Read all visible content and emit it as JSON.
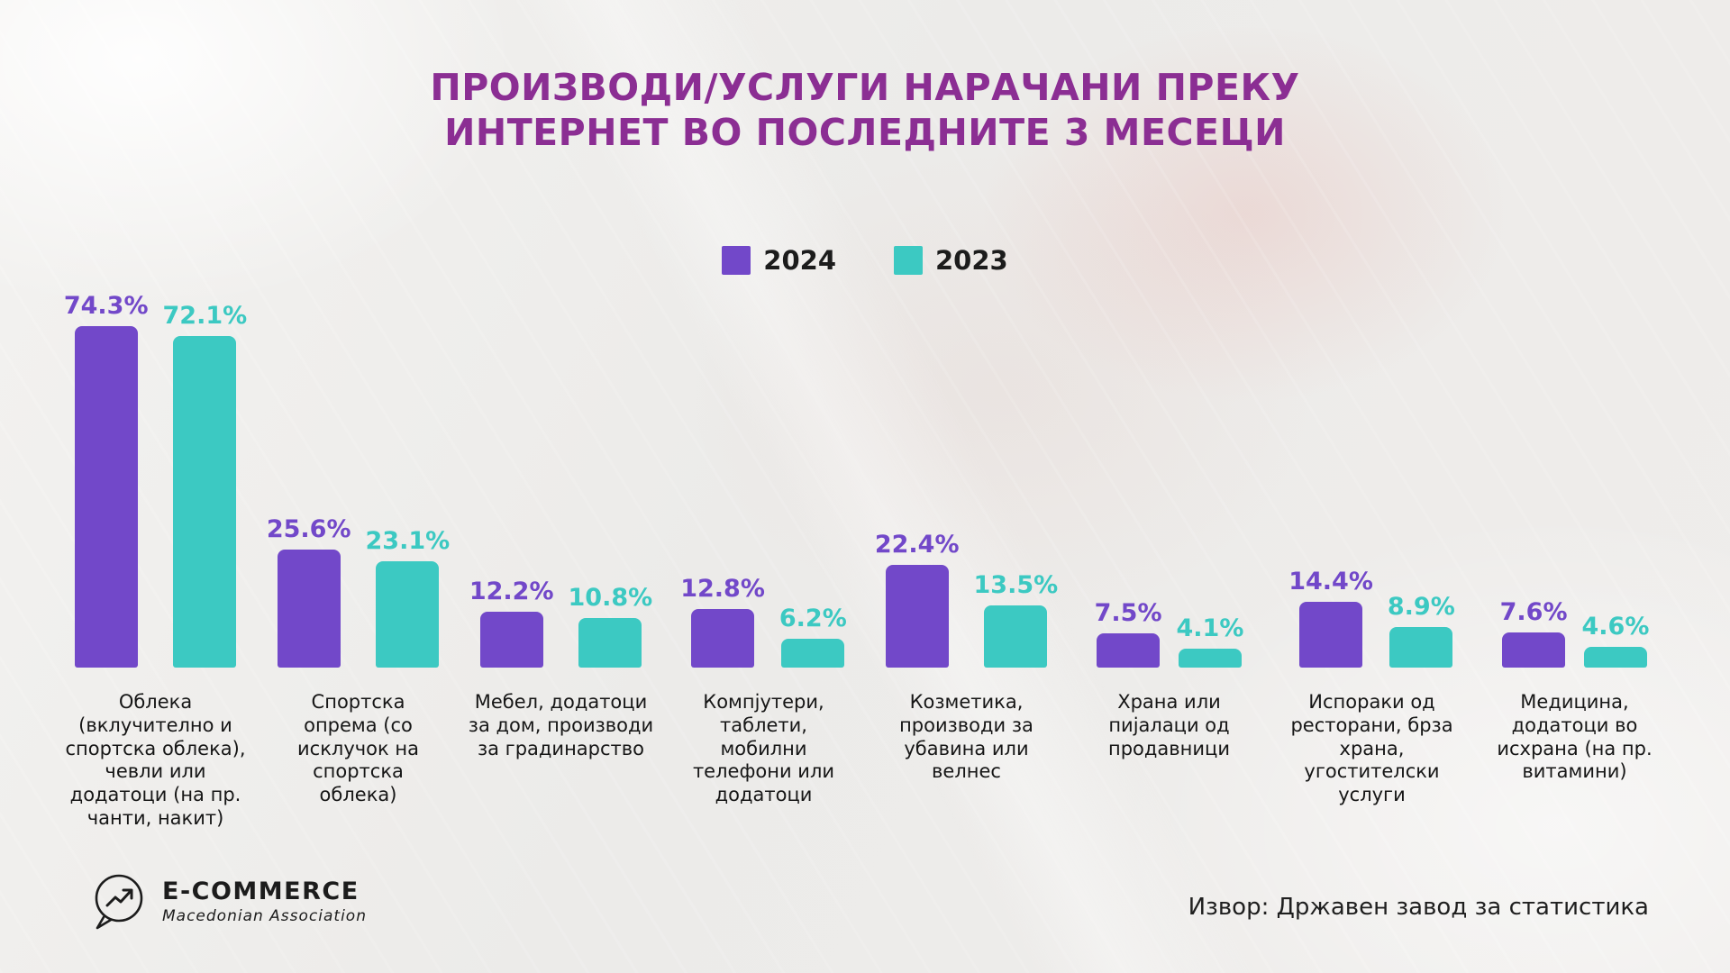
{
  "title": {
    "line1": "ПРОИЗВОДИ/УСЛУГИ НАРАЧАНИ ПРЕКУ",
    "line2": "ИНТЕРНЕТ ВО ПОСЛЕДНИТЕ 3 МЕСЕЦИ"
  },
  "legend": [
    {
      "label": "2024",
      "color": "#7248c9"
    },
    {
      "label": "2023",
      "color": "#3cc9c2"
    }
  ],
  "chart_data": {
    "type": "bar",
    "title": "ПРОИЗВОДИ/УСЛУГИ НАРАЧАНИ ПРЕКУ ИНТЕРНЕТ ВО ПОСЛЕДНИТЕ 3 МЕСЕЦИ",
    "categories": [
      "Облека (вклучително и спортска облека), чевли или додатоци (на пр. чанти, накит)",
      "Спортска опрема (со исклучок на спортска облека)",
      "Мебел, додатоци за дом, производи за градинарство",
      "Компјутери, таблети, мобилни телефони или додатоци",
      "Козметика, производи за убавина или велнес",
      "Храна или пијалаци од продавници",
      "Испораки од ресторани, брза храна, угостителски услуги",
      "Медицина, додатоци во исхрана (на пр. витамини)"
    ],
    "series": [
      {
        "name": "2024",
        "color": "#7248c9",
        "values": [
          74.3,
          25.6,
          12.2,
          12.8,
          22.4,
          7.5,
          14.4,
          7.6
        ]
      },
      {
        "name": "2023",
        "color": "#3cc9c2",
        "values": [
          72.1,
          23.1,
          10.8,
          6.2,
          13.5,
          4.1,
          8.9,
          4.6
        ]
      }
    ],
    "value_suffix": "%",
    "ylim": [
      0,
      80
    ],
    "grid": false,
    "legend_position": "top-center",
    "data_labels": true
  },
  "footer": {
    "source": "Извор: Државен завод за статистика",
    "logo": {
      "title": "E-COMMERCE",
      "subtitle": "Macedonian Association"
    }
  },
  "colors": {
    "title": "#8b2e93",
    "series_2024": "#7248c9",
    "series_2023": "#3cc9c2",
    "text": "#1c1c1c"
  }
}
